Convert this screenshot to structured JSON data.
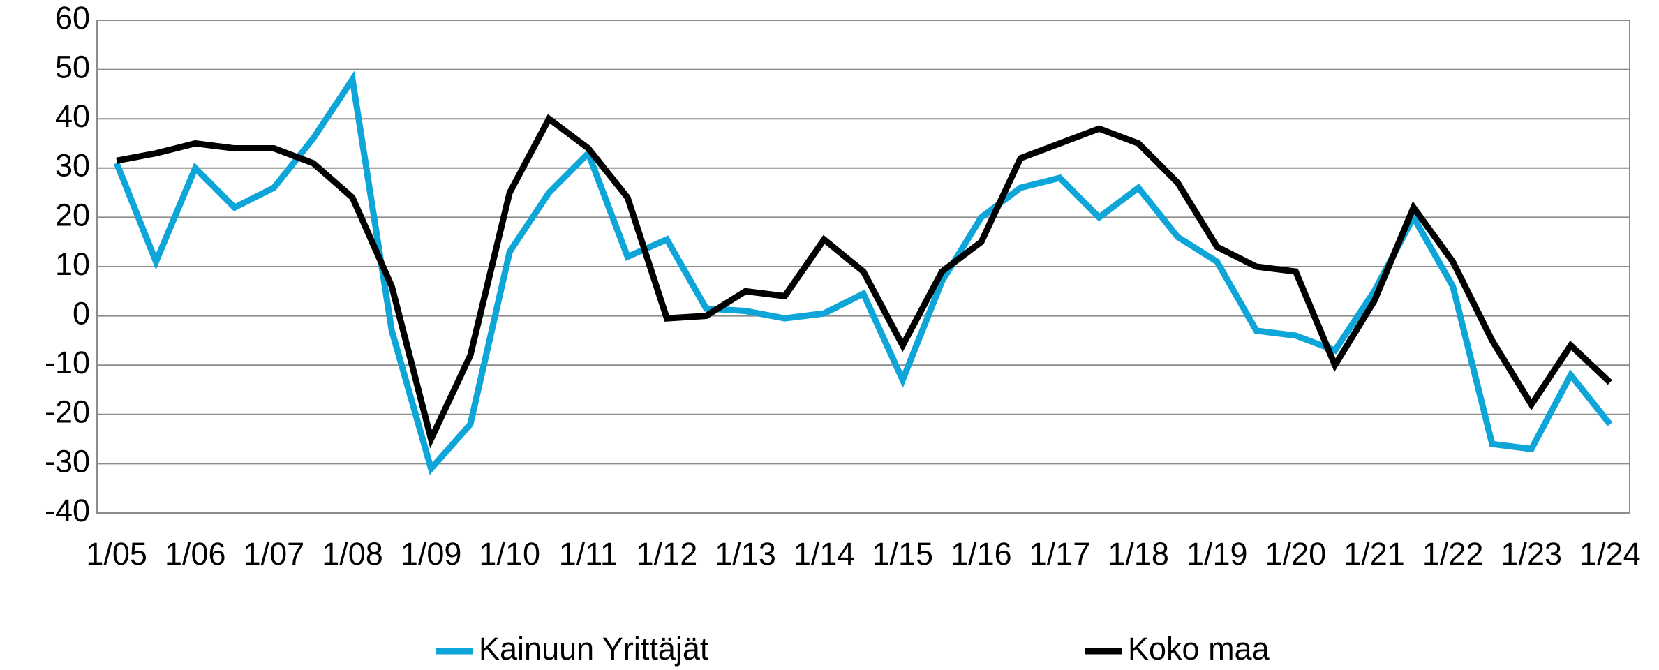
{
  "chart_data": {
    "type": "line",
    "categories": [
      "1/05",
      null,
      "1/06",
      null,
      "1/07",
      null,
      "1/08",
      null,
      "1/09",
      null,
      "1/10",
      null,
      "1/11",
      null,
      "1/12",
      null,
      "1/13",
      null,
      "1/14",
      null,
      "1/15",
      null,
      "1/16",
      null,
      "1/17",
      null,
      "1/18",
      null,
      "1/19",
      null,
      "1/20",
      null,
      "1/21",
      null,
      "1/22",
      null,
      "1/23",
      null,
      "1/24"
    ],
    "series": [
      {
        "name": "Kainuun Yrittäjät",
        "color": "#0ea5d8",
        "values": [
          31,
          11,
          30,
          22,
          26,
          36,
          48,
          -3,
          -31,
          -22,
          13,
          25,
          33,
          12,
          15.5,
          1.5,
          1,
          -0.5,
          0.5,
          4.5,
          -13,
          7,
          20,
          26,
          28,
          20,
          26,
          16,
          11,
          -3,
          -4,
          -7,
          5,
          20,
          6,
          -26,
          -27,
          -12,
          -22
        ]
      },
      {
        "name": "Koko maa",
        "color": "#000000",
        "values": [
          31.5,
          33,
          35,
          34,
          34,
          31,
          24,
          6,
          -25,
          -8,
          25,
          40,
          34,
          24,
          -0.5,
          0,
          5,
          4,
          15.5,
          9,
          -6,
          9,
          15,
          32,
          35,
          38,
          35,
          27,
          14,
          10,
          9,
          -10,
          3,
          22,
          11,
          -5,
          -18,
          -6,
          -13.5
        ]
      }
    ],
    "ylim": [
      -40,
      60
    ],
    "yticks": [
      -40,
      -30,
      -20,
      -10,
      0,
      10,
      20,
      30,
      40,
      50,
      60
    ],
    "grid": true
  }
}
